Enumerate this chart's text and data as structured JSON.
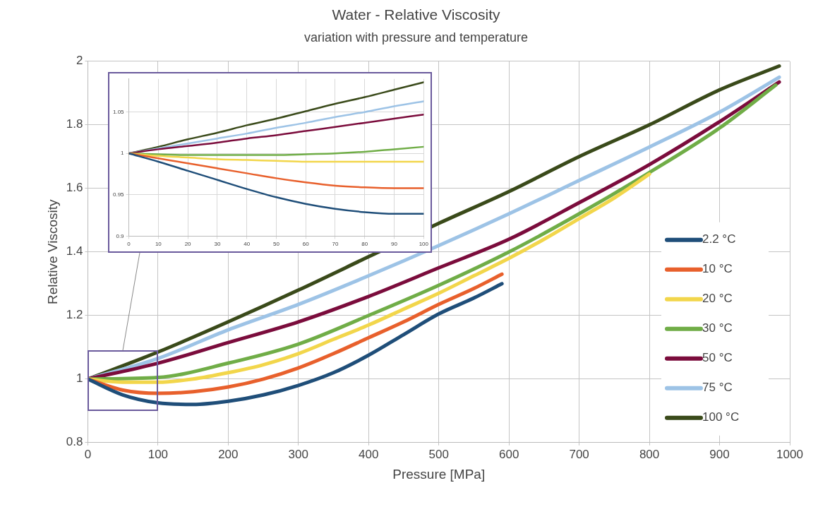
{
  "chart_data": [
    {
      "type": "line",
      "title": "Water - Relative Viscosity",
      "subtitle": "variation with pressure and temperature",
      "xlabel": "Pressure [MPa]",
      "ylabel": "Relative Viscosity",
      "xlim": [
        0,
        1000
      ],
      "xticks": [
        0,
        100,
        200,
        300,
        400,
        500,
        600,
        700,
        800,
        900,
        1000
      ],
      "ylim": [
        0.8,
        2
      ],
      "yticks": [
        0.8,
        1,
        1.2,
        1.4,
        1.6,
        1.8,
        2
      ],
      "grid": true,
      "legend": "bottom right",
      "series": [
        {
          "name": "2.2 °C",
          "color": "#1f4e79",
          "x": [
            0,
            50,
            100,
            150,
            200,
            250,
            300,
            350,
            400,
            450,
            500,
            550,
            590
          ],
          "values": [
            1,
            0.95,
            0.925,
            0.92,
            0.93,
            0.95,
            0.98,
            1.02,
            1.075,
            1.14,
            1.205,
            1.255,
            1.3
          ]
        },
        {
          "name": "10 °C",
          "color": "#e8602c",
          "x": [
            0,
            50,
            100,
            150,
            200,
            250,
            300,
            350,
            400,
            450,
            500,
            550,
            590
          ],
          "values": [
            1,
            0.965,
            0.955,
            0.96,
            0.975,
            1.0,
            1.035,
            1.08,
            1.13,
            1.18,
            1.235,
            1.285,
            1.33
          ]
        },
        {
          "name": "20 °C",
          "color": "#f2d64b",
          "x": [
            0,
            50,
            100,
            150,
            200,
            250,
            300,
            350,
            400,
            450,
            500,
            550,
            600,
            650,
            700,
            750,
            800
          ],
          "values": [
            1,
            0.99,
            0.99,
            1.0,
            1.02,
            1.045,
            1.08,
            1.125,
            1.17,
            1.22,
            1.27,
            1.325,
            1.38,
            1.44,
            1.505,
            1.57,
            1.645
          ]
        },
        {
          "name": "30 °C",
          "color": "#70ad47",
          "x": [
            0,
            100,
            200,
            300,
            400,
            500,
            600,
            700,
            800,
            900,
            980
          ],
          "values": [
            1,
            1.005,
            1.05,
            1.11,
            1.2,
            1.295,
            1.4,
            1.52,
            1.65,
            1.79,
            1.925
          ]
        },
        {
          "name": "50 °C",
          "color": "#7b0c3c",
          "x": [
            0,
            100,
            200,
            300,
            400,
            500,
            600,
            700,
            800,
            900,
            985
          ],
          "values": [
            1,
            1.05,
            1.115,
            1.18,
            1.26,
            1.35,
            1.44,
            1.555,
            1.675,
            1.81,
            1.935
          ]
        },
        {
          "name": "75 °C",
          "color": "#9dc3e6",
          "x": [
            0,
            100,
            200,
            300,
            400,
            500,
            600,
            700,
            800,
            900,
            985
          ],
          "values": [
            1,
            1.065,
            1.155,
            1.235,
            1.325,
            1.42,
            1.52,
            1.625,
            1.73,
            1.84,
            1.95
          ]
        },
        {
          "name": "100 °C",
          "color": "#3a4a1a",
          "x": [
            0,
            100,
            200,
            300,
            400,
            500,
            600,
            700,
            800,
            900,
            985
          ],
          "values": [
            1,
            1.085,
            1.18,
            1.28,
            1.385,
            1.49,
            1.59,
            1.7,
            1.8,
            1.91,
            1.985
          ]
        }
      ]
    },
    {
      "type": "line",
      "xlim": [
        0,
        100
      ],
      "xticks": [
        0,
        10,
        20,
        30,
        40,
        50,
        60,
        70,
        80,
        90,
        100
      ],
      "ylim": [
        0.9,
        1.09
      ],
      "yticks": [
        0.9,
        0.95,
        1,
        1.05
      ],
      "grid": true,
      "series": [
        {
          "color": "#1f4e79",
          "x": [
            0,
            10,
            20,
            30,
            40,
            50,
            60,
            70,
            80,
            90,
            100
          ],
          "values": [
            1,
            0.99,
            0.979,
            0.968,
            0.957,
            0.947,
            0.939,
            0.933,
            0.929,
            0.927,
            0.927
          ]
        },
        {
          "color": "#e8602c",
          "x": [
            0,
            10,
            20,
            30,
            40,
            50,
            60,
            70,
            80,
            90,
            100
          ],
          "values": [
            1,
            0.994,
            0.988,
            0.982,
            0.976,
            0.97,
            0.965,
            0.961,
            0.959,
            0.958,
            0.958
          ]
        },
        {
          "color": "#f2d64b",
          "x": [
            0,
            10,
            20,
            30,
            40,
            50,
            60,
            70,
            80,
            90,
            100
          ],
          "values": [
            1,
            0.997,
            0.995,
            0.993,
            0.992,
            0.991,
            0.99,
            0.99,
            0.99,
            0.99,
            0.99
          ]
        },
        {
          "color": "#70ad47",
          "x": [
            0,
            10,
            20,
            30,
            40,
            50,
            60,
            70,
            80,
            90,
            100
          ],
          "values": [
            1,
            0.999,
            0.998,
            0.998,
            0.998,
            0.998,
            0.999,
            1.0,
            1.002,
            1.005,
            1.008
          ]
        },
        {
          "color": "#7b0c3c",
          "x": [
            0,
            10,
            20,
            30,
            40,
            50,
            60,
            70,
            80,
            90,
            100
          ],
          "values": [
            1,
            1.005,
            1.009,
            1.013,
            1.018,
            1.022,
            1.027,
            1.032,
            1.037,
            1.042,
            1.047
          ]
        },
        {
          "color": "#9dc3e6",
          "x": [
            0,
            10,
            20,
            30,
            40,
            50,
            60,
            70,
            80,
            90,
            100
          ],
          "values": [
            1,
            1.006,
            1.012,
            1.018,
            1.024,
            1.031,
            1.037,
            1.044,
            1.05,
            1.057,
            1.063
          ]
        },
        {
          "color": "#3a4a1a",
          "x": [
            0,
            10,
            20,
            30,
            40,
            50,
            60,
            70,
            80,
            90,
            100
          ],
          "values": [
            1,
            1.008,
            1.017,
            1.025,
            1.034,
            1.042,
            1.051,
            1.06,
            1.068,
            1.077,
            1.086
          ]
        }
      ]
    }
  ]
}
